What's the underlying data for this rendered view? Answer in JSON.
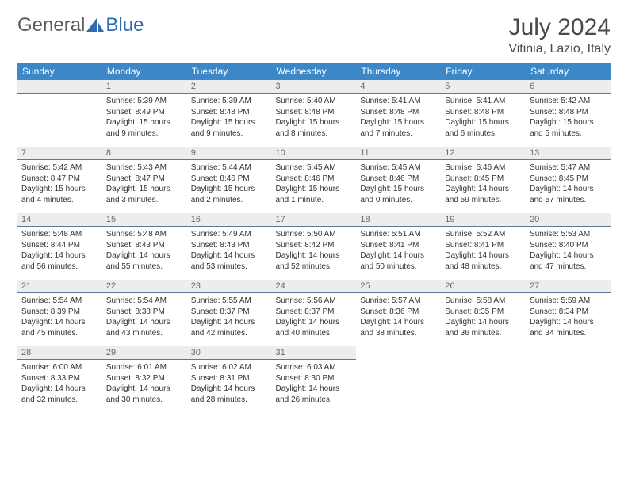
{
  "brand": {
    "part1": "General",
    "part2": "Blue"
  },
  "title": "July 2024",
  "location": "Vitinia, Lazio, Italy",
  "dayNames": [
    "Sunday",
    "Monday",
    "Tuesday",
    "Wednesday",
    "Thursday",
    "Friday",
    "Saturday"
  ],
  "colors": {
    "headerBg": "#3b87c8",
    "headerText": "#ffffff",
    "dayNumBg": "#eceded",
    "dayNumBorder": "#5b7a99",
    "bodyText": "#333333",
    "titleText": "#4a4a4a"
  },
  "weeks": [
    [
      null,
      {
        "n": "1",
        "sr": "5:39 AM",
        "ss": "8:49 PM",
        "dl": "15 hours and 9 minutes."
      },
      {
        "n": "2",
        "sr": "5:39 AM",
        "ss": "8:48 PM",
        "dl": "15 hours and 9 minutes."
      },
      {
        "n": "3",
        "sr": "5:40 AM",
        "ss": "8:48 PM",
        "dl": "15 hours and 8 minutes."
      },
      {
        "n": "4",
        "sr": "5:41 AM",
        "ss": "8:48 PM",
        "dl": "15 hours and 7 minutes."
      },
      {
        "n": "5",
        "sr": "5:41 AM",
        "ss": "8:48 PM",
        "dl": "15 hours and 6 minutes."
      },
      {
        "n": "6",
        "sr": "5:42 AM",
        "ss": "8:48 PM",
        "dl": "15 hours and 5 minutes."
      }
    ],
    [
      {
        "n": "7",
        "sr": "5:42 AM",
        "ss": "8:47 PM",
        "dl": "15 hours and 4 minutes."
      },
      {
        "n": "8",
        "sr": "5:43 AM",
        "ss": "8:47 PM",
        "dl": "15 hours and 3 minutes."
      },
      {
        "n": "9",
        "sr": "5:44 AM",
        "ss": "8:46 PM",
        "dl": "15 hours and 2 minutes."
      },
      {
        "n": "10",
        "sr": "5:45 AM",
        "ss": "8:46 PM",
        "dl": "15 hours and 1 minute."
      },
      {
        "n": "11",
        "sr": "5:45 AM",
        "ss": "8:46 PM",
        "dl": "15 hours and 0 minutes."
      },
      {
        "n": "12",
        "sr": "5:46 AM",
        "ss": "8:45 PM",
        "dl": "14 hours and 59 minutes."
      },
      {
        "n": "13",
        "sr": "5:47 AM",
        "ss": "8:45 PM",
        "dl": "14 hours and 57 minutes."
      }
    ],
    [
      {
        "n": "14",
        "sr": "5:48 AM",
        "ss": "8:44 PM",
        "dl": "14 hours and 56 minutes."
      },
      {
        "n": "15",
        "sr": "5:48 AM",
        "ss": "8:43 PM",
        "dl": "14 hours and 55 minutes."
      },
      {
        "n": "16",
        "sr": "5:49 AM",
        "ss": "8:43 PM",
        "dl": "14 hours and 53 minutes."
      },
      {
        "n": "17",
        "sr": "5:50 AM",
        "ss": "8:42 PM",
        "dl": "14 hours and 52 minutes."
      },
      {
        "n": "18",
        "sr": "5:51 AM",
        "ss": "8:41 PM",
        "dl": "14 hours and 50 minutes."
      },
      {
        "n": "19",
        "sr": "5:52 AM",
        "ss": "8:41 PM",
        "dl": "14 hours and 48 minutes."
      },
      {
        "n": "20",
        "sr": "5:53 AM",
        "ss": "8:40 PM",
        "dl": "14 hours and 47 minutes."
      }
    ],
    [
      {
        "n": "21",
        "sr": "5:54 AM",
        "ss": "8:39 PM",
        "dl": "14 hours and 45 minutes."
      },
      {
        "n": "22",
        "sr": "5:54 AM",
        "ss": "8:38 PM",
        "dl": "14 hours and 43 minutes."
      },
      {
        "n": "23",
        "sr": "5:55 AM",
        "ss": "8:37 PM",
        "dl": "14 hours and 42 minutes."
      },
      {
        "n": "24",
        "sr": "5:56 AM",
        "ss": "8:37 PM",
        "dl": "14 hours and 40 minutes."
      },
      {
        "n": "25",
        "sr": "5:57 AM",
        "ss": "8:36 PM",
        "dl": "14 hours and 38 minutes."
      },
      {
        "n": "26",
        "sr": "5:58 AM",
        "ss": "8:35 PM",
        "dl": "14 hours and 36 minutes."
      },
      {
        "n": "27",
        "sr": "5:59 AM",
        "ss": "8:34 PM",
        "dl": "14 hours and 34 minutes."
      }
    ],
    [
      {
        "n": "28",
        "sr": "6:00 AM",
        "ss": "8:33 PM",
        "dl": "14 hours and 32 minutes."
      },
      {
        "n": "29",
        "sr": "6:01 AM",
        "ss": "8:32 PM",
        "dl": "14 hours and 30 minutes."
      },
      {
        "n": "30",
        "sr": "6:02 AM",
        "ss": "8:31 PM",
        "dl": "14 hours and 28 minutes."
      },
      {
        "n": "31",
        "sr": "6:03 AM",
        "ss": "8:30 PM",
        "dl": "14 hours and 26 minutes."
      },
      null,
      null,
      null
    ]
  ],
  "labels": {
    "sunrise": "Sunrise: ",
    "sunset": "Sunset: ",
    "daylight": "Daylight: "
  }
}
